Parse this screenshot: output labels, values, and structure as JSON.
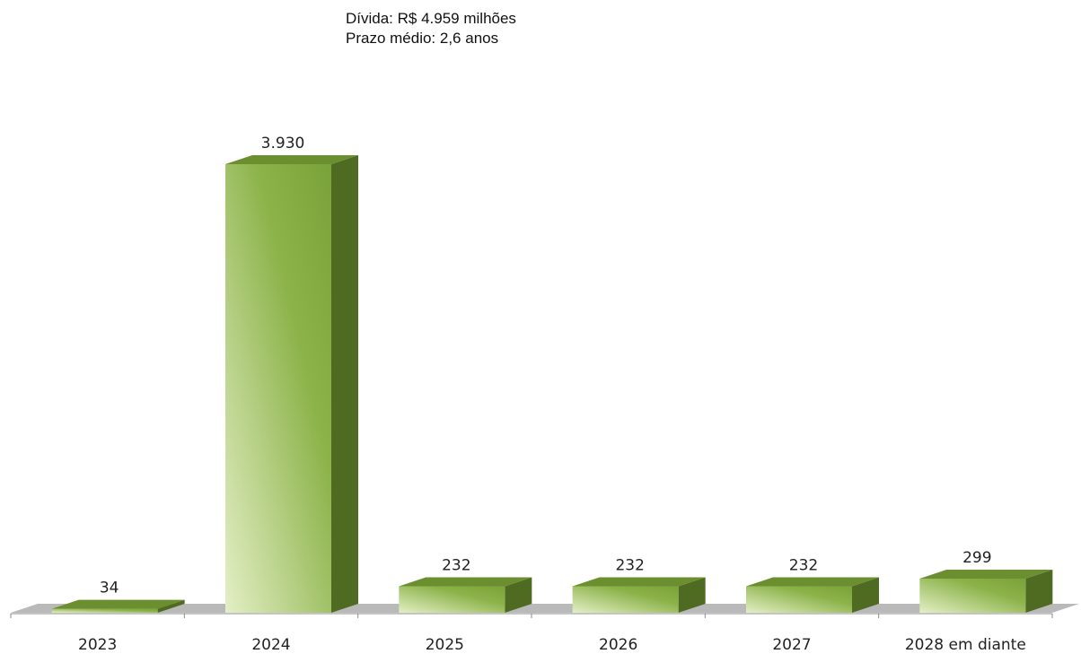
{
  "annotation": {
    "line1": "Dívida: R$ 4.959 milhões",
    "line2": "Prazo médio: 2,6 anos"
  },
  "chart_data": {
    "type": "bar",
    "style": "3d",
    "categories": [
      "2023",
      "2024",
      "2025",
      "2026",
      "2027",
      "2028 em diante"
    ],
    "values": [
      34,
      3930,
      232,
      232,
      232,
      299
    ],
    "value_labels": [
      "34",
      "3.930",
      "232",
      "232",
      "232",
      "299"
    ],
    "grid": false,
    "legend": "none",
    "colors": {
      "bar_front_light": "#e4efc6",
      "bar_front_dark": "#7aa23a",
      "bar_side": "#4f6b22",
      "bar_top": "#6b8f2f",
      "floor": "#b9b9b9"
    }
  }
}
